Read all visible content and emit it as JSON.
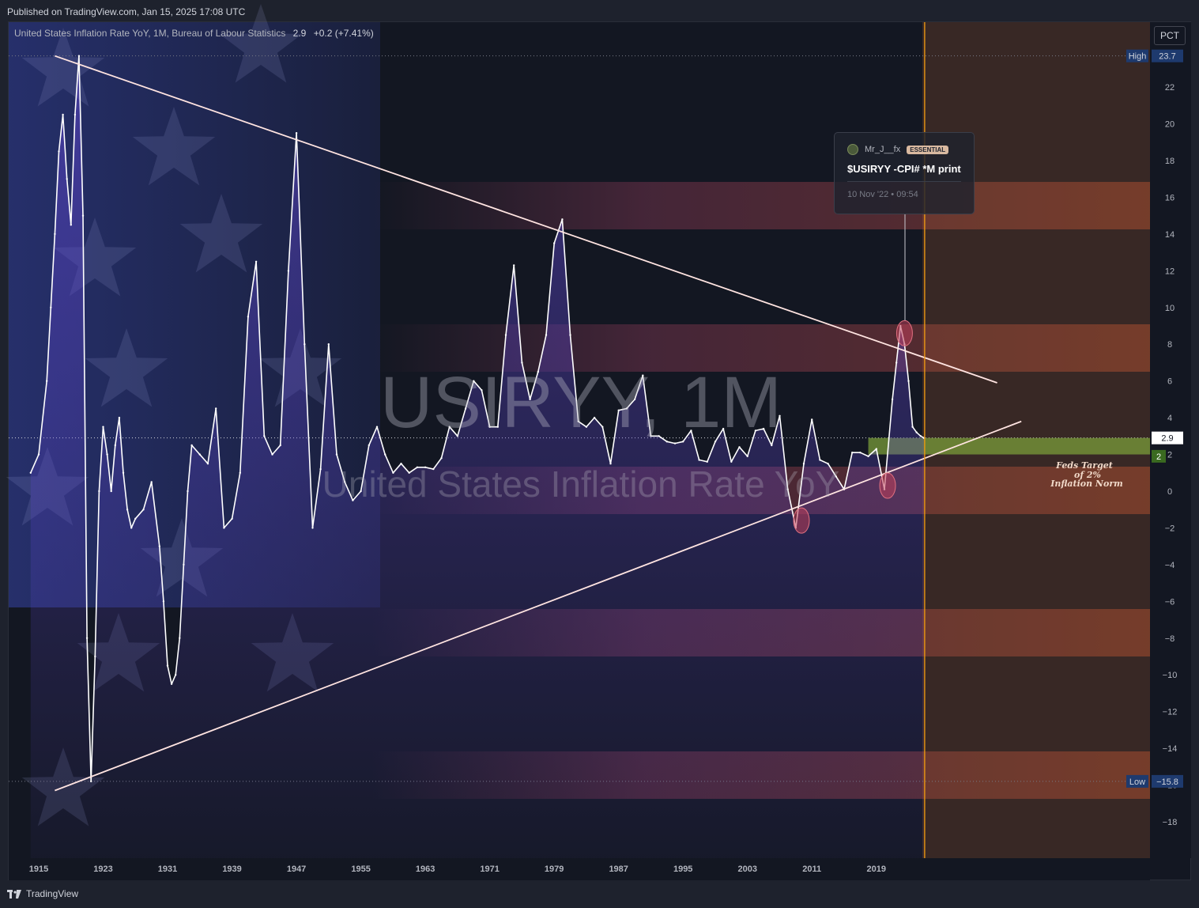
{
  "header": {
    "published": "Published on TradingView.com, Jan 15, 2025 17:08 UTC"
  },
  "legend": {
    "title": "United States Inflation Rate YoY, 1M, Bureau of Labour Statistics",
    "value": "2.9",
    "change": "+0.2 (+7.41%)"
  },
  "unit_button": "PCT",
  "watermark": {
    "symbol": "USIRYY, 1M",
    "name": "United States Inflation Rate YoY"
  },
  "idea": {
    "author": "Mr_J__fx",
    "badge": "ESSENTIAL",
    "title": "$USIRYY -CPI# *M print",
    "time": "10 Nov '22 • 09:54"
  },
  "annotation": {
    "lines": [
      "Feds Target",
      "of 2%",
      "Inflation Norm"
    ]
  },
  "footer": {
    "brand": "TradingView"
  },
  "colors": {
    "background": "#131722",
    "line": "#ffffff",
    "area": "#5b45c8",
    "trend_line": "#ffe4e1",
    "highlight": "#c0405a",
    "target_zone": "#7a9c3a",
    "cursor_line": "#f39c12"
  },
  "chart_data": {
    "type": "area",
    "title": "United States Inflation Rate YoY, 1M, Bureau of Labour Statistics",
    "ylabel": "PCT",
    "xlabel": "",
    "y_ticks": [
      22,
      20,
      18,
      16,
      14,
      12,
      10,
      8,
      6,
      4,
      2,
      0,
      -2,
      -4,
      -6,
      -8,
      -10,
      -12,
      -14,
      -16,
      -18
    ],
    "x_ticks": [
      "1915",
      "1923",
      "1931",
      "1939",
      "1947",
      "1955",
      "1963",
      "1971",
      "1979",
      "1987",
      "1995",
      "2003",
      "2011",
      "2019"
    ],
    "ylim": [
      -20,
      25
    ],
    "grid": false,
    "high": {
      "label": "High",
      "value": "23.7"
    },
    "low": {
      "label": "Low",
      "value": "-15.8"
    },
    "last": {
      "value": "2.9"
    },
    "target_label": "2",
    "series": [
      {
        "x": [
          1914,
          1915,
          1916,
          1916.5,
          1917,
          1917.5,
          1918,
          1918.5,
          1919,
          1919.5,
          1920,
          1920.5,
          1921,
          1921.5,
          1922,
          1922.5,
          1923,
          1923.5,
          1924,
          1924.5,
          1925,
          1925.5,
          1926,
          1926.5,
          1927,
          1928,
          1929,
          1930,
          1930.5,
          1931,
          1931.5,
          1932,
          1932.5,
          1933,
          1933.5,
          1934,
          1935,
          1936,
          1937,
          1938,
          1939,
          1940,
          1941,
          1942,
          1943,
          1944,
          1945,
          1946,
          1947,
          1948,
          1949,
          1950,
          1951,
          1952,
          1953,
          1954,
          1955,
          1956,
          1957,
          1958,
          1959,
          1960,
          1961,
          1962,
          1963,
          1964,
          1965,
          1966,
          1967,
          1968,
          1969,
          1970,
          1971,
          1972,
          1973,
          1974,
          1975,
          1976,
          1977,
          1978,
          1979,
          1980,
          1981,
          1982,
          1983,
          1984,
          1985,
          1986,
          1987,
          1988,
          1989,
          1990,
          1991,
          1992,
          1993,
          1994,
          1995,
          1996,
          1997,
          1998,
          1999,
          2000,
          2001,
          2002,
          2003,
          2004,
          2005,
          2006,
          2007,
          2008,
          2009,
          2010,
          2011,
          2012,
          2013,
          2014,
          2015,
          2016,
          2017,
          2018,
          2019,
          2020,
          2021,
          2021.5,
          2022,
          2022.5,
          2023,
          2023.5,
          2024,
          2024.5,
          2024.9
        ],
        "values": [
          1.0,
          2.0,
          6.0,
          10.0,
          14.0,
          18.5,
          20.5,
          17.0,
          14.5,
          20.5,
          23.7,
          15.0,
          -8.0,
          -15.8,
          -9.0,
          0.0,
          3.5,
          2.0,
          0.0,
          2.5,
          4.0,
          1.0,
          -1.0,
          -2.0,
          -1.5,
          -1.0,
          0.5,
          -3.0,
          -6.0,
          -9.5,
          -10.5,
          -10.0,
          -8.0,
          -4.0,
          0.0,
          2.5,
          2.0,
          1.5,
          4.5,
          -2.0,
          -1.5,
          1.0,
          9.5,
          12.5,
          3.0,
          2.0,
          2.5,
          12.0,
          19.5,
          8.0,
          -2.0,
          1.2,
          8.0,
          2.0,
          0.5,
          -0.5,
          0.0,
          2.5,
          3.5,
          2.0,
          1.0,
          1.5,
          1.0,
          1.3,
          1.3,
          1.2,
          1.8,
          3.5,
          3.0,
          4.5,
          6.0,
          5.5,
          3.5,
          3.5,
          8.5,
          12.3,
          7.0,
          5.0,
          6.5,
          8.5,
          13.5,
          14.8,
          8.5,
          3.8,
          3.5,
          4.0,
          3.5,
          1.5,
          4.4,
          4.5,
          5.0,
          6.3,
          3.0,
          3.0,
          2.7,
          2.6,
          2.7,
          3.3,
          1.7,
          1.6,
          2.7,
          3.4,
          1.6,
          2.4,
          1.9,
          3.3,
          3.4,
          2.5,
          4.1,
          0.1,
          -2.0,
          1.5,
          3.9,
          1.7,
          1.5,
          0.8,
          0.1,
          2.1,
          2.1,
          1.9,
          2.3,
          0.1,
          5.0,
          7.0,
          9.0,
          8.0,
          6.0,
          3.5,
          3.2,
          3.0,
          2.9
        ]
      }
    ],
    "trend_lines": [
      {
        "name": "upper",
        "from": [
          1917,
          23.7
        ],
        "to": [
          2034,
          5.9
        ]
      },
      {
        "name": "lower",
        "from": [
          1917,
          -16.3
        ],
        "to": [
          2037,
          3.8
        ]
      }
    ],
    "highlights": [
      {
        "x": 2009.7,
        "y": -1.6
      },
      {
        "x": 2020.4,
        "y": 0.3
      },
      {
        "x": 2022.5,
        "y": 8.6
      }
    ],
    "target_zone": {
      "from_x": 2018,
      "y_low": 2.0,
      "y_high": 2.9
    },
    "cursor_x": 2025.0
  }
}
